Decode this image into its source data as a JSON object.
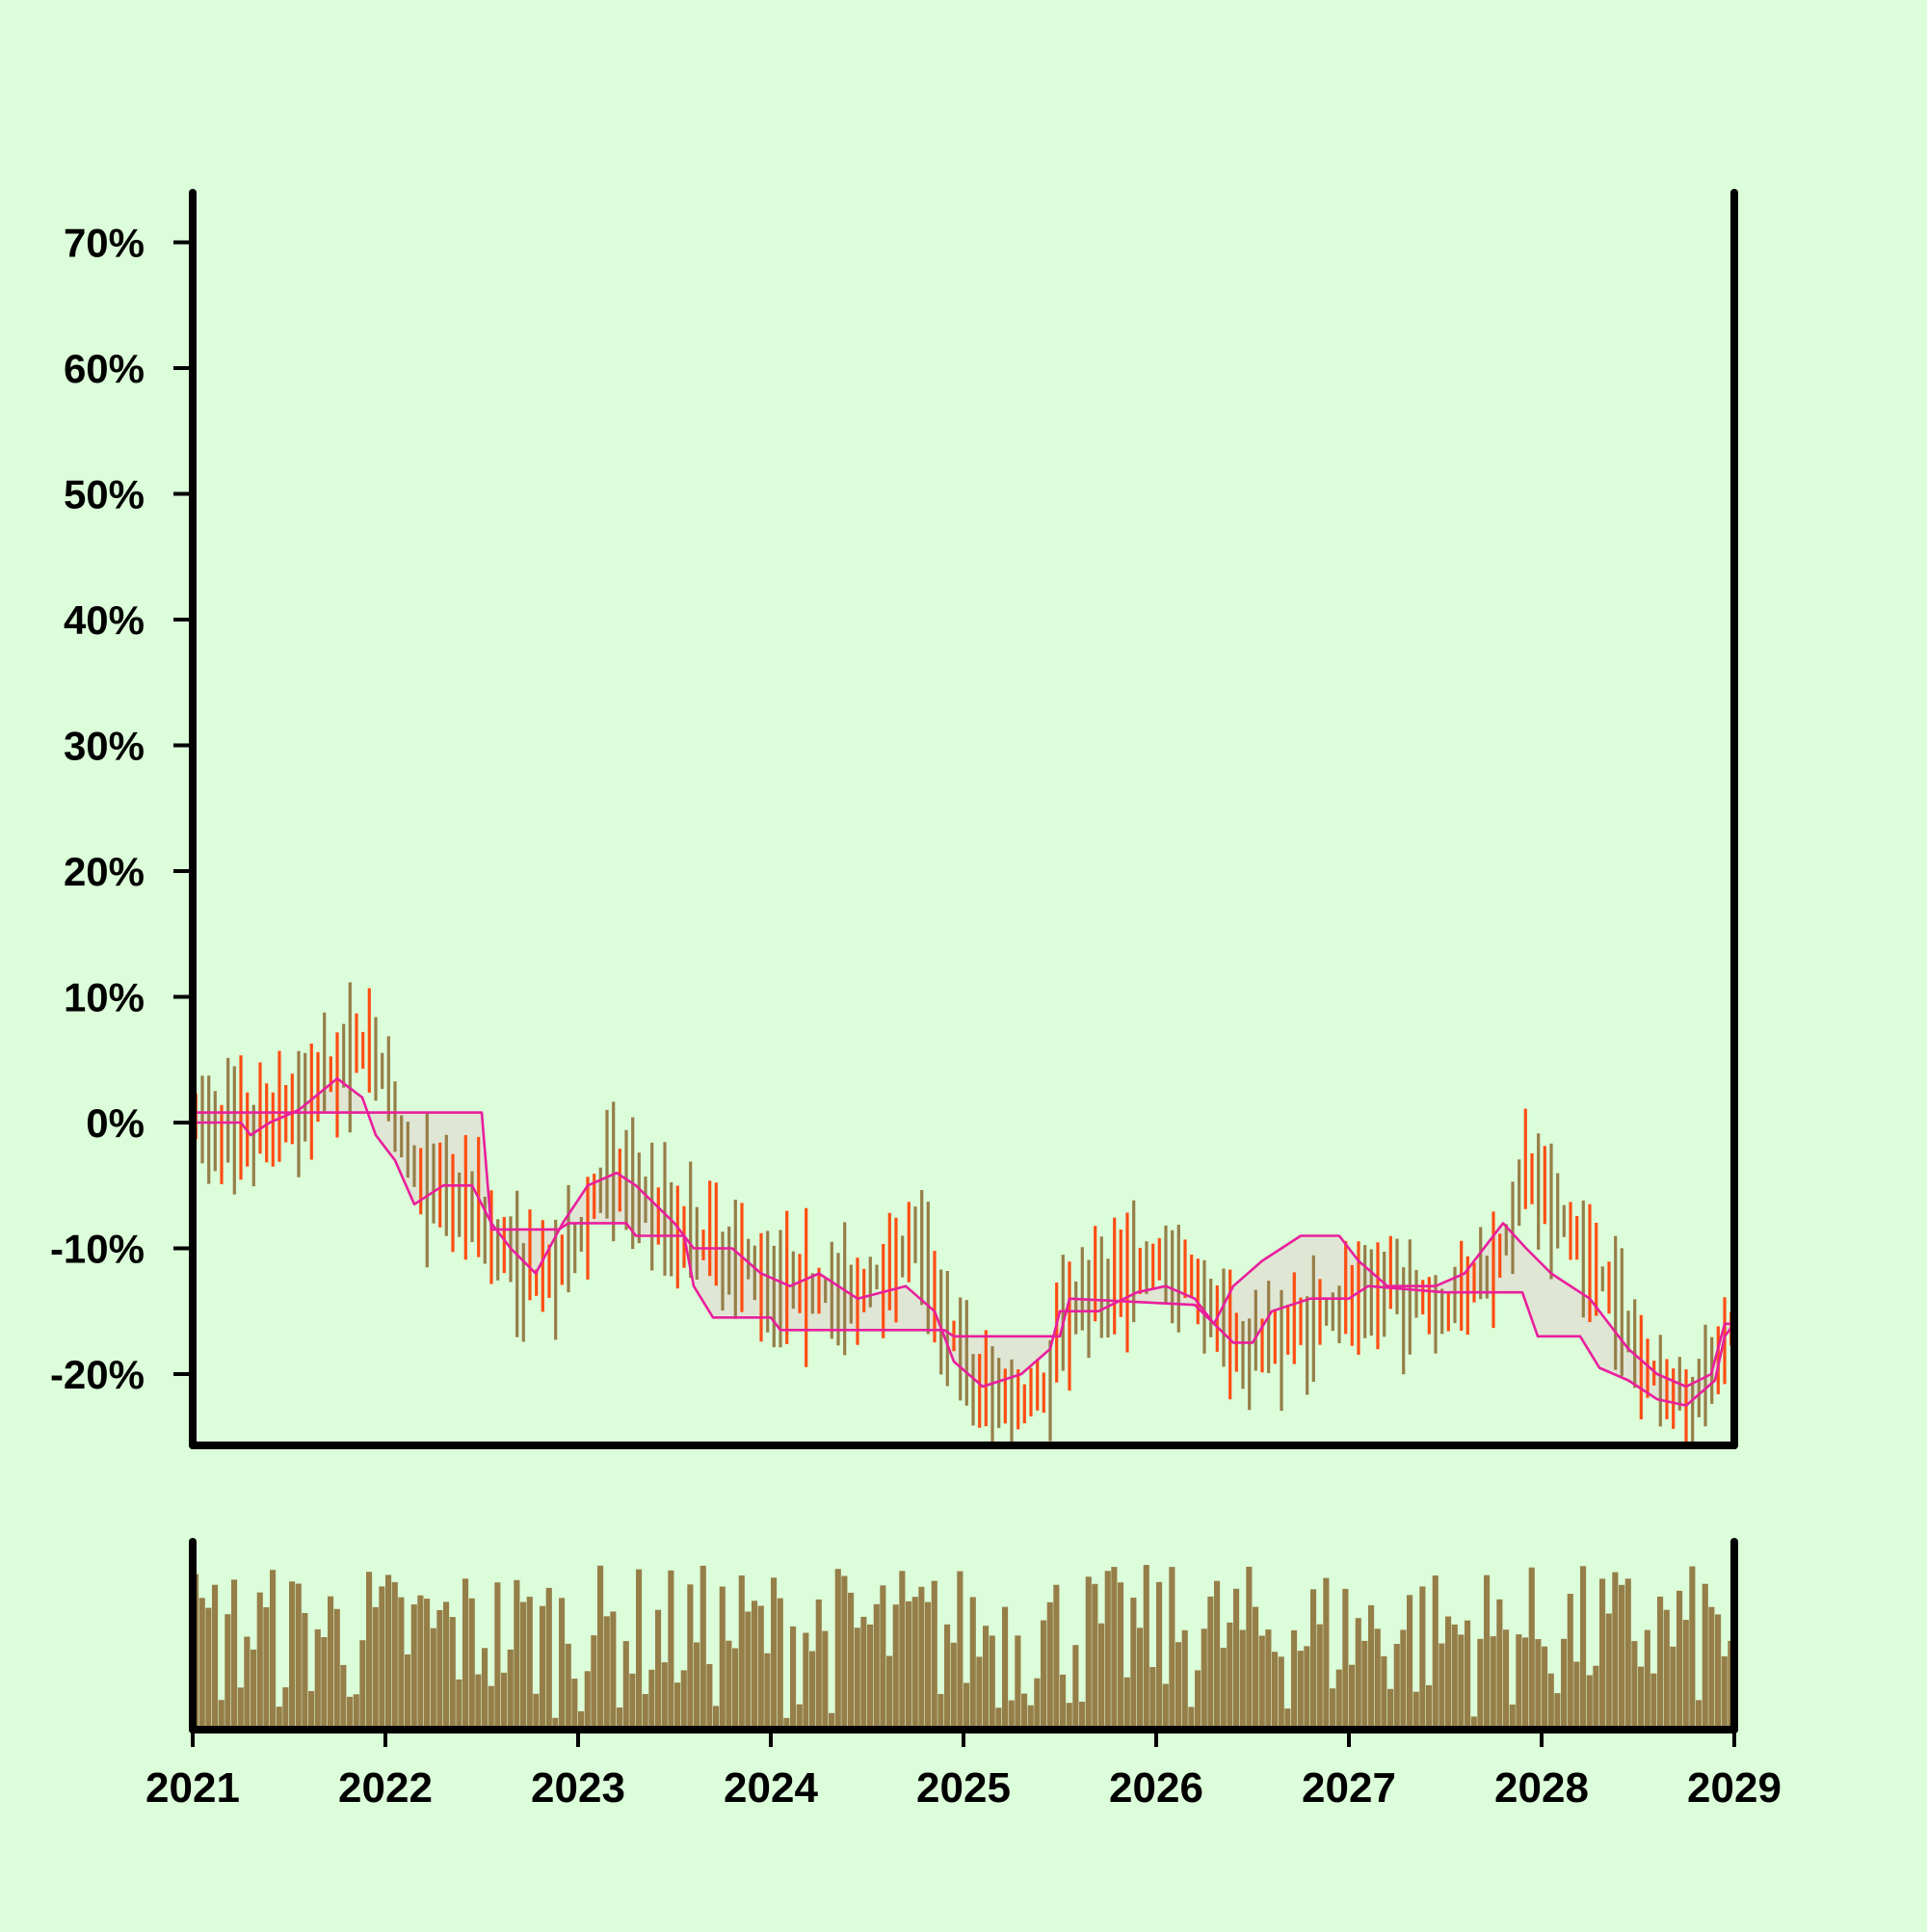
{
  "chart_data": {
    "type": "ohlc",
    "title": "",
    "xlabel": "",
    "ylabel": "",
    "x_range": [
      2021,
      2029
    ],
    "ylim": [
      -25,
      75
    ],
    "y_ticks": [
      {
        "value": 70,
        "label": "70%"
      },
      {
        "value": 60,
        "label": "60%"
      },
      {
        "value": 50,
        "label": "50%"
      },
      {
        "value": 40,
        "label": "40%"
      },
      {
        "value": 30,
        "label": "30%"
      },
      {
        "value": 20,
        "label": "20%"
      },
      {
        "value": 10,
        "label": "10%"
      },
      {
        "value": 0,
        "label": "0%"
      },
      {
        "value": -10,
        "label": "-10%"
      },
      {
        "value": -20,
        "label": "-20%"
      }
    ],
    "x_ticks": [
      {
        "value": 2021,
        "label": "2021"
      },
      {
        "value": 2022,
        "label": "2022"
      },
      {
        "value": 2023,
        "label": "2023"
      },
      {
        "value": 2024,
        "label": "2024"
      },
      {
        "value": 2025,
        "label": "2025"
      },
      {
        "value": 2026,
        "label": "2026"
      },
      {
        "value": 2027,
        "label": "2027"
      },
      {
        "value": 2028,
        "label": "2028"
      },
      {
        "value": 2029,
        "label": "2029"
      }
    ],
    "grid": false,
    "legend": "none",
    "colors": {
      "up": "#967e48",
      "down": "#ff4d12",
      "band_line": "#e91e9d",
      "band_fill": "#dfe3d2",
      "volume": "#967e48",
      "axis": "#000000",
      "background": "#dcfdd9"
    },
    "trend_anchors": [
      [
        2021.0,
        0
      ],
      [
        2021.3,
        -1
      ],
      [
        2021.5,
        1
      ],
      [
        2021.75,
        4
      ],
      [
        2021.92,
        7
      ],
      [
        2022.05,
        0
      ],
      [
        2022.2,
        -5
      ],
      [
        2022.45,
        -6
      ],
      [
        2022.6,
        -10
      ],
      [
        2022.8,
        -13
      ],
      [
        2022.95,
        -11
      ],
      [
        2023.15,
        -4
      ],
      [
        2023.3,
        -5
      ],
      [
        2023.5,
        -8
      ],
      [
        2023.7,
        -10
      ],
      [
        2024.0,
        -12
      ],
      [
        2024.2,
        -13
      ],
      [
        2024.45,
        -14
      ],
      [
        2024.75,
        -9
      ],
      [
        2024.9,
        -15
      ],
      [
        2025.05,
        -21
      ],
      [
        2025.3,
        -22
      ],
      [
        2025.45,
        -21
      ],
      [
        2025.5,
        -15
      ],
      [
        2025.7,
        -13
      ],
      [
        2026.0,
        -11
      ],
      [
        2026.2,
        -13
      ],
      [
        2026.45,
        -18
      ],
      [
        2026.6,
        -17
      ],
      [
        2026.9,
        -15
      ],
      [
        2027.2,
        -13
      ],
      [
        2027.5,
        -15
      ],
      [
        2027.65,
        -13
      ],
      [
        2027.8,
        -10
      ],
      [
        2027.92,
        -4
      ],
      [
        2028.1,
        -8
      ],
      [
        2028.3,
        -12
      ],
      [
        2028.5,
        -18
      ],
      [
        2028.62,
        -21
      ],
      [
        2028.8,
        -22
      ],
      [
        2028.95,
        -17
      ],
      [
        2029.0,
        -16
      ]
    ],
    "band_upper": [
      [
        2021.0,
        0
      ],
      [
        2021.25,
        0
      ],
      [
        2021.3,
        -1
      ],
      [
        2021.4,
        0
      ],
      [
        2021.55,
        1
      ],
      [
        2021.75,
        3.5
      ],
      [
        2021.88,
        2
      ],
      [
        2021.95,
        -1
      ],
      [
        2022.05,
        -3
      ],
      [
        2022.15,
        -6.5
      ],
      [
        2022.3,
        -5
      ],
      [
        2022.45,
        -5
      ],
      [
        2022.55,
        -8
      ],
      [
        2022.65,
        -10
      ],
      [
        2022.78,
        -12
      ],
      [
        2022.92,
        -8
      ],
      [
        2023.05,
        -5
      ],
      [
        2023.2,
        -4
      ],
      [
        2023.3,
        -5
      ],
      [
        2023.5,
        -8
      ],
      [
        2023.6,
        -10
      ],
      [
        2023.8,
        -10
      ],
      [
        2023.95,
        -12
      ],
      [
        2024.1,
        -13
      ],
      [
        2024.25,
        -12
      ],
      [
        2024.45,
        -14
      ],
      [
        2024.7,
        -13
      ],
      [
        2024.85,
        -15
      ],
      [
        2024.95,
        -19
      ],
      [
        2025.1,
        -21
      ],
      [
        2025.3,
        -20
      ],
      [
        2025.45,
        -18
      ],
      [
        2025.5,
        -15
      ],
      [
        2025.7,
        -15
      ],
      [
        2025.9,
        -13.5
      ],
      [
        2026.05,
        -13
      ],
      [
        2026.2,
        -14
      ],
      [
        2026.3,
        -16
      ],
      [
        2026.4,
        -13
      ],
      [
        2026.55,
        -11
      ],
      [
        2026.75,
        -9
      ],
      [
        2026.95,
        -9
      ],
      [
        2027.05,
        -11
      ],
      [
        2027.2,
        -13
      ],
      [
        2027.45,
        -13
      ],
      [
        2027.6,
        -12
      ],
      [
        2027.8,
        -8
      ],
      [
        2027.92,
        -10
      ],
      [
        2028.05,
        -12
      ],
      [
        2028.25,
        -14
      ],
      [
        2028.45,
        -18
      ],
      [
        2028.6,
        -20
      ],
      [
        2028.75,
        -21
      ],
      [
        2028.88,
        -20
      ],
      [
        2028.95,
        -16
      ],
      [
        2029.0,
        -16
      ]
    ],
    "band_lower": [
      [
        2021.0,
        0.8
      ],
      [
        2022.5,
        0.8
      ],
      [
        2022.55,
        -8.5
      ],
      [
        2022.9,
        -8.5
      ],
      [
        2022.95,
        -8
      ],
      [
        2023.25,
        -8
      ],
      [
        2023.3,
        -9
      ],
      [
        2023.55,
        -9
      ],
      [
        2023.6,
        -13
      ],
      [
        2023.7,
        -15.5
      ],
      [
        2024.0,
        -15.5
      ],
      [
        2024.05,
        -16.5
      ],
      [
        2024.65,
        -16.5
      ],
      [
        2024.9,
        -16.5
      ],
      [
        2024.95,
        -17
      ],
      [
        2025.5,
        -17
      ],
      [
        2025.55,
        -14
      ],
      [
        2026.2,
        -14.5
      ],
      [
        2026.3,
        -16
      ],
      [
        2026.4,
        -17.5
      ],
      [
        2026.5,
        -17.5
      ],
      [
        2026.6,
        -15
      ],
      [
        2026.8,
        -14
      ],
      [
        2027.0,
        -14
      ],
      [
        2027.1,
        -13
      ],
      [
        2027.5,
        -13.5
      ],
      [
        2027.9,
        -13.5
      ],
      [
        2027.98,
        -17
      ],
      [
        2028.2,
        -17
      ],
      [
        2028.3,
        -19.5
      ],
      [
        2028.45,
        -20.5
      ],
      [
        2028.6,
        -22
      ],
      [
        2028.75,
        -22.5
      ],
      [
        2028.9,
        -20.5
      ],
      [
        2028.95,
        -17
      ],
      [
        2029.0,
        -16
      ]
    ],
    "series_note": ""
  }
}
